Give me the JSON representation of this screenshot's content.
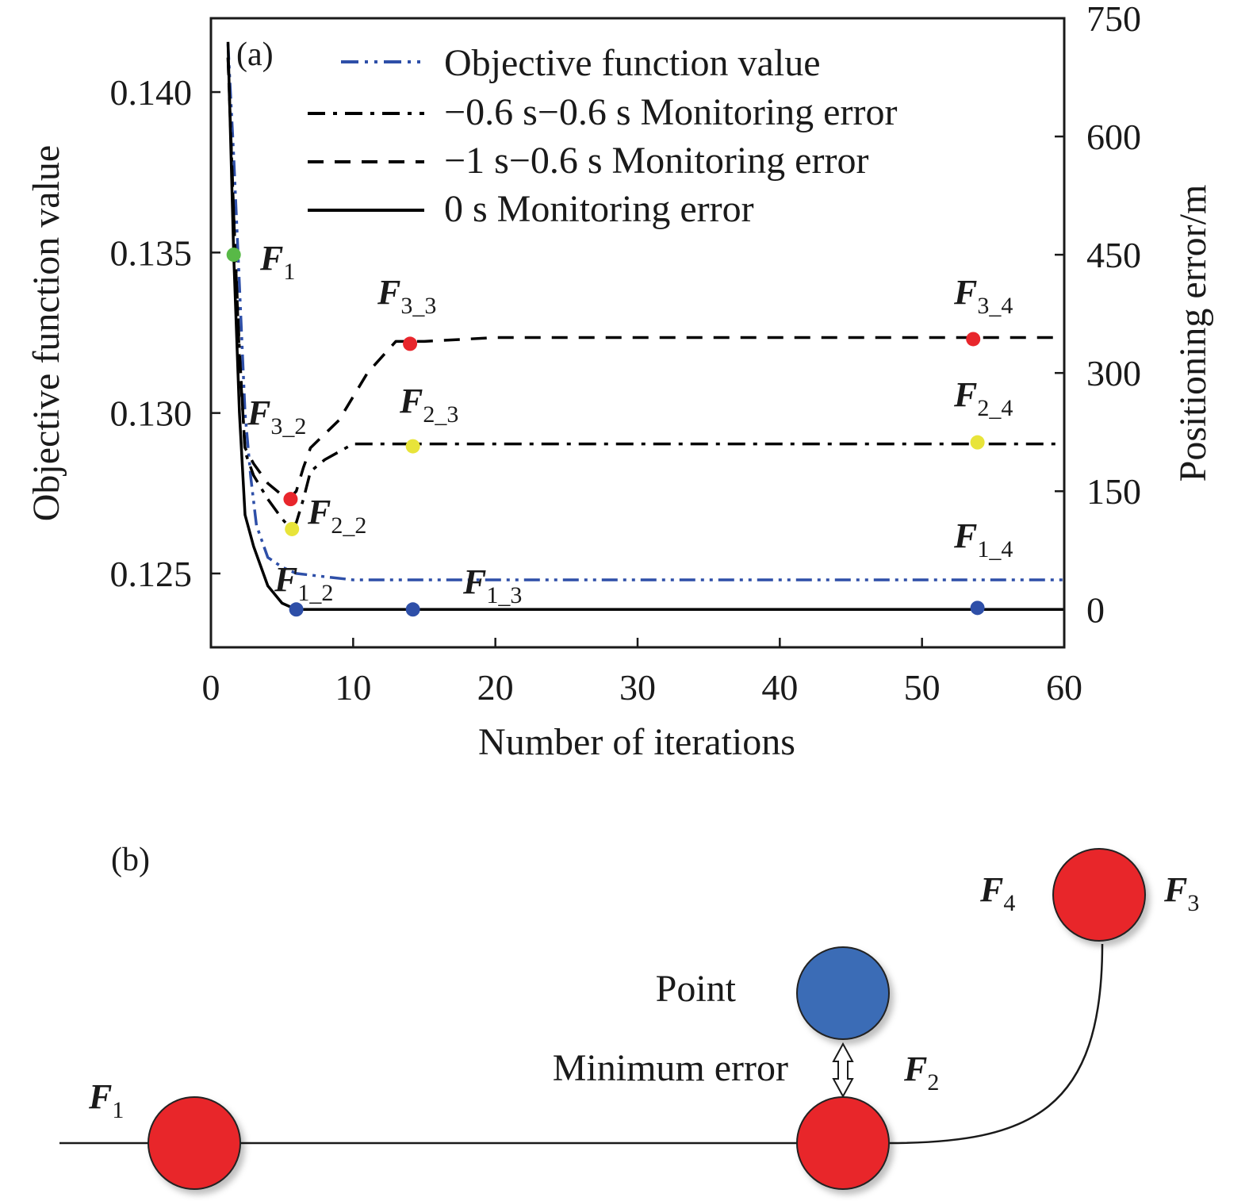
{
  "chart_data": [
    {
      "type": "line",
      "panel_label": "(a)",
      "xlabel": "Number of iterations",
      "ylabel_left": "Objective function value",
      "ylabel_right": "Positioning error/m",
      "xlim": [
        0,
        60
      ],
      "xticks": [
        0,
        10,
        20,
        30,
        40,
        50,
        60
      ],
      "ylim_left": [
        0.1227,
        0.1423
      ],
      "yticks_left": [
        0.125,
        0.13,
        0.135,
        0.14
      ],
      "ytick_labels_left": [
        "0.125",
        "0.130",
        "0.135",
        "0.140"
      ],
      "ylim_right": [
        -48,
        750
      ],
      "yticks_right": [
        0,
        150,
        300,
        450,
        600,
        750
      ],
      "ytick_labels_right": [
        "0",
        "150",
        "300",
        "450",
        "600",
        "750"
      ],
      "grid": false,
      "legend_position": "top-right",
      "series": [
        {
          "name": "Objective function value",
          "axis": "left",
          "style": "dash-dot-dot",
          "color": "#2e4fa8",
          "x": [
            1.2,
            1.6,
            2.0,
            2.4,
            2.8,
            3.2,
            4.0,
            5.0,
            6.0,
            8.0,
            10.0,
            20.0,
            40.0,
            60.0
          ],
          "y": [
            0.1415,
            0.138,
            0.134,
            0.13,
            0.128,
            0.1265,
            0.1255,
            0.1252,
            0.125,
            0.1249,
            0.1248,
            0.1248,
            0.1248,
            0.1248
          ]
        },
        {
          "name": "−0.6 s−0.6 s Monitoring error",
          "axis": "right",
          "style": "dash-dot",
          "color": "#000000",
          "x": [
            1.2,
            1.6,
            2.0,
            2.4,
            3.0,
            4.0,
            5.0,
            5.5,
            6.0,
            6.5,
            7.0,
            8.0,
            10.0,
            15.0,
            30.0,
            60.0
          ],
          "y": [
            700,
            500,
            330,
            200,
            170,
            140,
            115,
            105,
            110,
            140,
            175,
            190,
            210,
            210,
            210,
            210
          ]
        },
        {
          "name": "−1 s−0.6 s Monitoring error",
          "axis": "right",
          "style": "dashed",
          "color": "#000000",
          "x": [
            1.2,
            1.6,
            2.0,
            2.4,
            3.0,
            4.0,
            5.0,
            5.5,
            6.0,
            6.5,
            7.0,
            9.0,
            11.0,
            13.0,
            15.0,
            20.0,
            30.0,
            60.0
          ],
          "y": [
            700,
            500,
            320,
            205,
            185,
            160,
            145,
            140,
            150,
            180,
            205,
            240,
            300,
            340,
            340,
            345,
            345,
            345
          ]
        },
        {
          "name": "0 s Monitoring error",
          "axis": "right",
          "style": "solid",
          "color": "#000000",
          "x": [
            1.2,
            1.6,
            2.0,
            2.4,
            3.0,
            4.0,
            5.0,
            6.0,
            7.0,
            10.0,
            20.0,
            40.0,
            60.0
          ],
          "y": [
            720,
            450,
            250,
            120,
            80,
            30,
            8,
            0,
            0,
            0,
            0,
            0,
            0
          ]
        }
      ],
      "points": [
        {
          "id": "F1",
          "base": "F",
          "sub": "1",
          "x": 1.6,
          "y": 450,
          "axis": "right",
          "color": "#58b947"
        },
        {
          "id": "F1_2",
          "base": "F",
          "sub": "1_2",
          "x": 6.0,
          "y": 0,
          "axis": "right",
          "color": "#2e4fa8"
        },
        {
          "id": "F1_3",
          "base": "F",
          "sub": "1_3",
          "x": 14.2,
          "y": 0,
          "axis": "right",
          "color": "#2e4fa8"
        },
        {
          "id": "F1_4",
          "base": "F",
          "sub": "1_4",
          "x": 53.9,
          "y": 2,
          "axis": "right",
          "color": "#2e4fa8"
        },
        {
          "id": "F2_2",
          "base": "F",
          "sub": "2_2",
          "x": 5.7,
          "y": 102,
          "axis": "right",
          "color": "#e8e43a"
        },
        {
          "id": "F2_3",
          "base": "F",
          "sub": "2_3",
          "x": 14.2,
          "y": 207,
          "axis": "right",
          "color": "#e8e43a"
        },
        {
          "id": "F2_4",
          "base": "F",
          "sub": "2_4",
          "x": 53.9,
          "y": 212,
          "axis": "right",
          "color": "#e8e43a"
        },
        {
          "id": "F3_2",
          "base": "F",
          "sub": "3_2",
          "x": 5.6,
          "y": 140,
          "axis": "right",
          "color": "#e8262c"
        },
        {
          "id": "F3_3",
          "base": "F",
          "sub": "3_3",
          "x": 14.0,
          "y": 337,
          "axis": "right",
          "color": "#e8262c"
        },
        {
          "id": "F3_4",
          "base": "F",
          "sub": "3_4",
          "x": 53.6,
          "y": 343,
          "axis": "right",
          "color": "#e8262c"
        }
      ]
    },
    {
      "type": "diagram",
      "panel_label": "(b)",
      "nodes": [
        {
          "id": "F1",
          "base": "F",
          "sub": "1",
          "color": "#e8262c"
        },
        {
          "id": "F2",
          "base": "F",
          "sub": "2",
          "color": "#e8262c"
        },
        {
          "id": "F3",
          "base": "F",
          "sub": "3",
          "color": "#e8262c"
        },
        {
          "id": "F4",
          "base": "F",
          "sub": "4",
          "color": "#e8262c"
        },
        {
          "id": "point",
          "label": "Point",
          "color": "#3b6cb6"
        }
      ],
      "annotation": "Minimum error"
    }
  ]
}
